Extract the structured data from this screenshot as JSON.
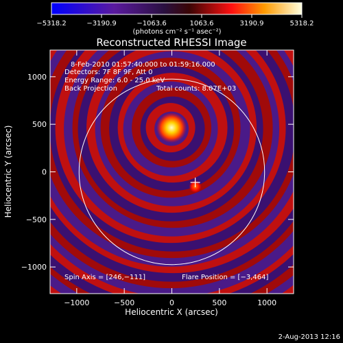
{
  "chart_data": {
    "type": "heatmap",
    "title": "Reconstructed RHESSI Image",
    "xlabel": "Heliocentric X (arcsec)",
    "ylabel": "Heliocentric Y (arcsec)",
    "xlim": [
      -1280,
      1280
    ],
    "ylim": [
      -1280,
      1280
    ],
    "xticks": [
      -1000,
      -500,
      0,
      500,
      1000
    ],
    "xtick_labels": [
      "−1000",
      "−500",
      "0",
      "500",
      "1000"
    ],
    "yticks": [
      -1000,
      -500,
      0,
      500,
      1000
    ],
    "ytick_labels": [
      "−1000",
      "−500",
      "0",
      "500",
      "1000"
    ],
    "colorbar": {
      "range": [
        -5318.2,
        5318.2
      ],
      "ticks": [
        -5318.2,
        -3190.9,
        -1063.6,
        1063.6,
        3190.9,
        5318.2
      ],
      "tick_labels": [
        "−5318.2",
        "−3190.9",
        "−1063.6",
        "1063.6",
        "3190.9",
        "5318.2"
      ],
      "unit_label": "(photons cm⁻² s⁻¹ asec⁻²)"
    },
    "annotations": [
      "8-Feb-2010 01:57:40.000 to 01:59:16.000",
      "Detectors: 7F 8F 9F, Att 0",
      "Energy Range: 6.0 - 25.0 keV",
      "Back Projection",
      "Total counts: 8.07E+03"
    ],
    "spin_axis_label": "Spin Axis = [246,−111]",
    "flare_position_label": "Flare Position = [−3,464]",
    "solar_limb_radius_arcsec": 975,
    "sources": [
      {
        "x": -3,
        "y": 464,
        "intensity": 5318.2
      },
      {
        "x": 246,
        "y": -111,
        "intensity": 2500
      }
    ],
    "spin_axis_marker": {
      "x": 246,
      "y": -111
    },
    "grid": false
  },
  "footer": {
    "date": "2-Aug-2013 12:16"
  },
  "colors": {
    "background": "#000000",
    "foreground": "#ffffff"
  }
}
